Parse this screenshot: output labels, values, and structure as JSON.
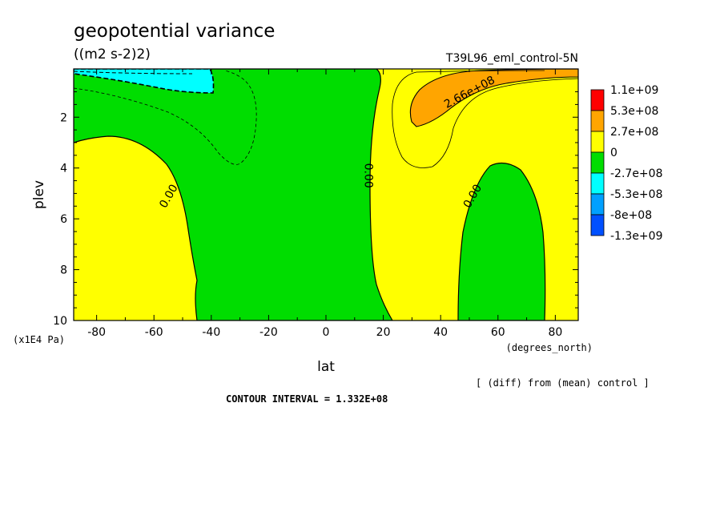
{
  "title": "geopotential variance",
  "units": "((m2 s-2)2)",
  "run_label": "T39L96_eml_control-5N",
  "contour_interval": "CONTOUR INTERVAL = 1.332E+08",
  "diff_note": "[ (diff) from (mean) control ]",
  "chart_data": {
    "type": "heatmap",
    "title": "geopotential variance",
    "xlabel": "lat",
    "xunits": "(degrees_north)",
    "ylabel": "plev",
    "yunits": "(x1E4 Pa)",
    "xlim": [
      -88,
      88
    ],
    "ylim": [
      10,
      0.1
    ],
    "x_ticks": [
      -80,
      -60,
      -40,
      -20,
      0,
      20,
      40,
      60,
      80
    ],
    "x_tick_labels": [
      "-80",
      "-60",
      "-40",
      "-20",
      "0",
      "20",
      "40",
      "60",
      "80"
    ],
    "y_ticks": [
      2,
      4,
      6,
      8,
      10
    ],
    "y_tick_labels": [
      "2",
      "4",
      "6",
      "8",
      "10"
    ],
    "contour_labels": [
      {
        "text": "0.00",
        "lat": -55,
        "plev": 5.1
      },
      {
        "text": "0.00",
        "lat": 15,
        "plev": 4.3
      },
      {
        "text": "0.00",
        "lat": 51,
        "plev": 5.1
      },
      {
        "text": "2.66e+08",
        "lat": 50,
        "plev": 1.0
      }
    ],
    "colorbar": {
      "labels": [
        "1.1e+09",
        "5.3e+08",
        "2.7e+08",
        "0",
        "-2.7e+08",
        "-5.3e+08",
        "-8e+08",
        "-1.3e+09"
      ],
      "colors": [
        "#ff0000",
        "#ffa500",
        "#ffff00",
        "#00dd00",
        "#00ffff",
        "#00a0ff",
        "#0050ff"
      ]
    },
    "colors": {
      "positive_1": "#ffff00",
      "positive_2": "#ffa500",
      "negative_1": "#00dd00",
      "negative_2": "#00ffff"
    }
  }
}
